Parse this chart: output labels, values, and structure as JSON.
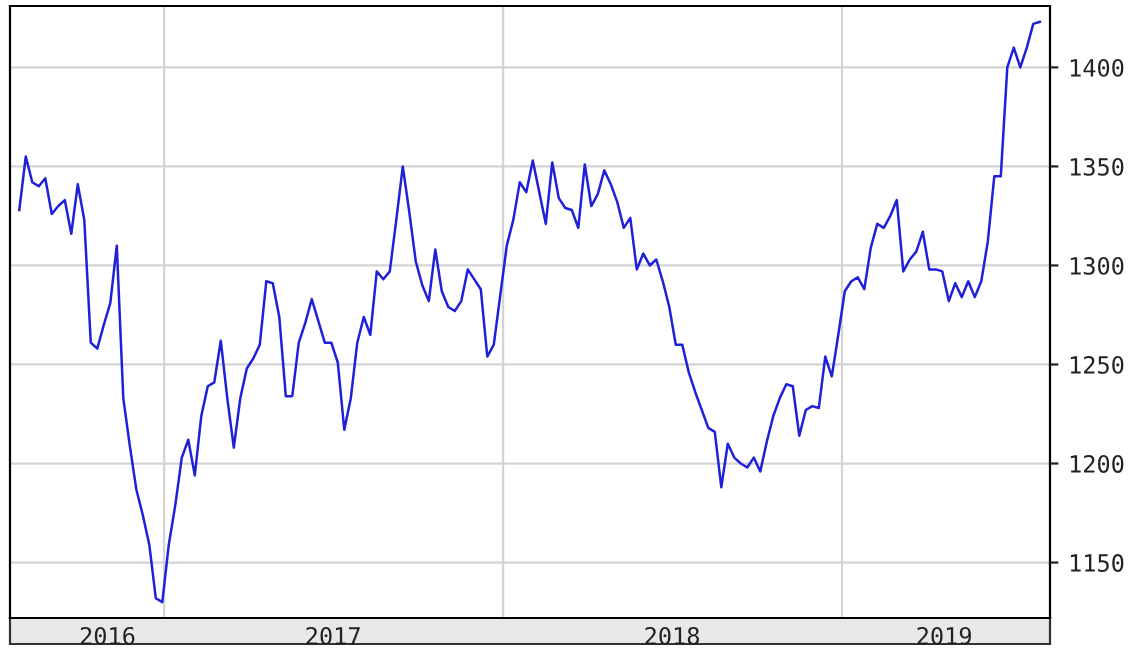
{
  "chart_data": {
    "type": "line",
    "x": [
      "2016-07-29",
      "2016-08-05",
      "2016-08-12",
      "2016-08-19",
      "2016-08-26",
      "2016-09-02",
      "2016-09-09",
      "2016-09-16",
      "2016-09-23",
      "2016-09-30",
      "2016-10-07",
      "2016-10-14",
      "2016-10-21",
      "2016-10-28",
      "2016-11-04",
      "2016-11-11",
      "2016-11-18",
      "2016-11-25",
      "2016-12-02",
      "2016-12-09",
      "2016-12-16",
      "2016-12-23",
      "2016-12-30",
      "2017-01-06",
      "2017-01-13",
      "2017-01-20",
      "2017-01-27",
      "2017-02-03",
      "2017-02-10",
      "2017-02-17",
      "2017-02-24",
      "2017-03-03",
      "2017-03-10",
      "2017-03-17",
      "2017-03-24",
      "2017-03-31",
      "2017-04-07",
      "2017-04-14",
      "2017-04-21",
      "2017-04-28",
      "2017-05-05",
      "2017-05-12",
      "2017-05-19",
      "2017-05-26",
      "2017-06-02",
      "2017-06-09",
      "2017-06-16",
      "2017-06-23",
      "2017-06-30",
      "2017-07-07",
      "2017-07-14",
      "2017-07-21",
      "2017-07-28",
      "2017-08-04",
      "2017-08-11",
      "2017-08-18",
      "2017-08-25",
      "2017-09-01",
      "2017-09-08",
      "2017-09-15",
      "2017-09-22",
      "2017-09-29",
      "2017-10-06",
      "2017-10-13",
      "2017-10-20",
      "2017-10-27",
      "2017-11-03",
      "2017-11-10",
      "2017-11-17",
      "2017-11-24",
      "2017-12-01",
      "2017-12-08",
      "2017-12-15",
      "2017-12-22",
      "2017-12-29",
      "2018-01-05",
      "2018-01-12",
      "2018-01-19",
      "2018-01-26",
      "2018-02-02",
      "2018-02-09",
      "2018-02-16",
      "2018-02-23",
      "2018-03-02",
      "2018-03-09",
      "2018-03-16",
      "2018-03-23",
      "2018-03-30",
      "2018-04-06",
      "2018-04-13",
      "2018-04-20",
      "2018-04-27",
      "2018-05-04",
      "2018-05-11",
      "2018-05-18",
      "2018-05-25",
      "2018-06-01",
      "2018-06-08",
      "2018-06-15",
      "2018-06-22",
      "2018-06-29",
      "2018-07-06",
      "2018-07-13",
      "2018-07-20",
      "2018-07-27",
      "2018-08-03",
      "2018-08-10",
      "2018-08-17",
      "2018-08-24",
      "2018-08-31",
      "2018-09-07",
      "2018-09-14",
      "2018-09-21",
      "2018-09-28",
      "2018-10-05",
      "2018-10-12",
      "2018-10-19",
      "2018-10-26",
      "2018-11-02",
      "2018-11-09",
      "2018-11-16",
      "2018-11-23",
      "2018-11-30",
      "2018-12-07",
      "2018-12-14",
      "2018-12-21",
      "2018-12-28",
      "2019-01-04",
      "2019-01-11",
      "2019-01-18",
      "2019-01-25",
      "2019-02-01",
      "2019-02-08",
      "2019-02-15",
      "2019-02-22",
      "2019-03-01",
      "2019-03-08",
      "2019-03-15",
      "2019-03-22",
      "2019-03-29",
      "2019-04-05",
      "2019-04-12",
      "2019-04-19",
      "2019-04-26",
      "2019-05-03",
      "2019-05-10",
      "2019-05-17",
      "2019-05-24",
      "2019-05-31",
      "2019-06-07",
      "2019-06-14",
      "2019-06-21",
      "2019-06-28",
      "2019-07-05",
      "2019-07-12",
      "2019-07-19",
      "2019-07-26",
      "2019-08-02"
    ],
    "series": [
      {
        "color": "#2020d8",
        "values": [
          1328,
          1355,
          1342,
          1340,
          1344,
          1326,
          1330,
          1333,
          1316,
          1341,
          1323,
          1261,
          1258,
          1270,
          1281,
          1310,
          1233,
          1209,
          1187,
          1174,
          1159,
          1132,
          1130,
          1159,
          1179,
          1203,
          1212,
          1194,
          1224,
          1239,
          1241,
          1262,
          1233,
          1208,
          1233,
          1248,
          1253,
          1260,
          1292,
          1291,
          1274,
          1234,
          1234,
          1261,
          1271,
          1283,
          1272,
          1261,
          1261,
          1251,
          1217,
          1233,
          1261,
          1274,
          1265,
          1297,
          1293,
          1297,
          1323,
          1350,
          1327,
          1302,
          1290,
          1282,
          1308,
          1287,
          1279,
          1277,
          1282,
          1298,
          1293,
          1288,
          1254,
          1260,
          1285,
          1310,
          1323,
          1342,
          1337,
          1353,
          1337,
          1321,
          1352,
          1334,
          1329,
          1328,
          1319,
          1351,
          1330,
          1336,
          1348,
          1341,
          1332,
          1319,
          1324,
          1298,
          1306,
          1300,
          1303,
          1292,
          1279,
          1260,
          1260,
          1246,
          1236,
          1227,
          1218,
          1216,
          1188,
          1210,
          1203,
          1200,
          1198,
          1203,
          1196,
          1211,
          1224,
          1233,
          1240,
          1239,
          1214,
          1227,
          1229,
          1228,
          1254,
          1244,
          1265,
          1287,
          1292,
          1294,
          1288,
          1309,
          1321,
          1319,
          1325,
          1333,
          1297,
          1303,
          1307,
          1317,
          1298,
          1298,
          1297,
          1282,
          1291,
          1284,
          1292,
          1284,
          1292,
          1312,
          1345,
          1345,
          1400,
          1410,
          1400,
          1410,
          1422,
          1423
        ]
      }
    ],
    "xlim": [
      "2016-07-19",
      "2019-08-13"
    ],
    "xticks": [
      {
        "value": "2016-11-01",
        "label": "2016"
      },
      {
        "value": "2017-01-01",
        "label": null
      },
      {
        "value": "2017-07-02",
        "label": "2017"
      },
      {
        "value": "2018-01-01",
        "label": null
      },
      {
        "value": "2018-07-02",
        "label": "2018"
      },
      {
        "value": "2019-01-01",
        "label": null
      },
      {
        "value": "2019-04-21",
        "label": "2019"
      }
    ],
    "ylim": [
      1122,
      1431
    ],
    "yticks": [
      1150,
      1200,
      1250,
      1300,
      1350,
      1400
    ],
    "grid": true,
    "legend": false,
    "marker": "none",
    "line_style": "solid"
  }
}
